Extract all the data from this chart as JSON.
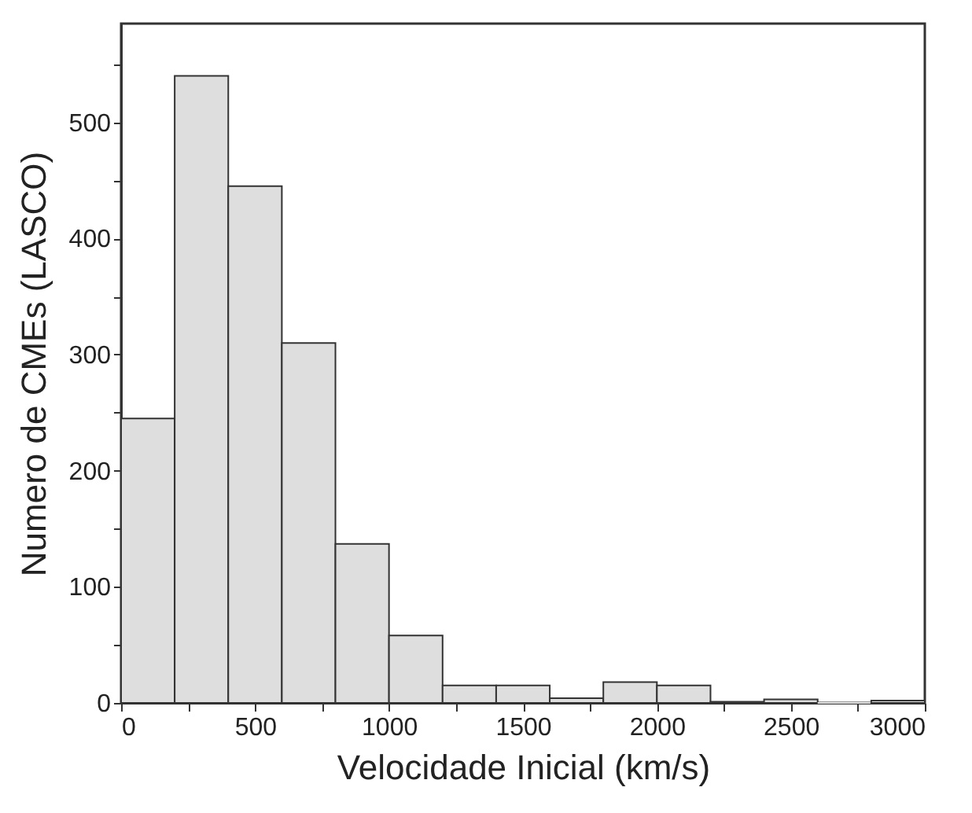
{
  "chart_data": {
    "type": "histogram",
    "xlabel": "Velocidade Inicial (km/s)",
    "ylabel": "Numero de CMEs (LASCO)",
    "bins": [
      0,
      200,
      400,
      600,
      800,
      1000,
      1200,
      1400,
      1600,
      1800,
      2000,
      2200,
      2400,
      2600,
      2800,
      3000
    ],
    "values": [
      245,
      540,
      445,
      310,
      137,
      58,
      15,
      15,
      4,
      18,
      15,
      1,
      3,
      0,
      2
    ],
    "color": "#dedede",
    "xlim": [
      0,
      3000
    ],
    "xticks": [
      0,
      {
        "value": 250,
        "label": null
      },
      500,
      {
        "value": 750,
        "label": null
      },
      1000,
      {
        "value": 1250,
        "label": null
      },
      1500,
      {
        "value": 1750,
        "label": null
      },
      2000,
      {
        "value": 2250,
        "label": null
      },
      2500,
      {
        "value": 2750,
        "label": null
      },
      3000
    ],
    "ylim": [
      0,
      585
    ],
    "yticks": [
      0,
      {
        "value": 50,
        "label": null
      },
      100,
      {
        "value": 150,
        "label": null
      },
      200,
      {
        "value": 250,
        "label": null
      },
      300,
      {
        "value": 350,
        "label": null
      },
      400,
      {
        "value": 450,
        "label": null
      },
      500,
      {
        "value": 550,
        "label": null
      }
    ],
    "grid": false
  }
}
